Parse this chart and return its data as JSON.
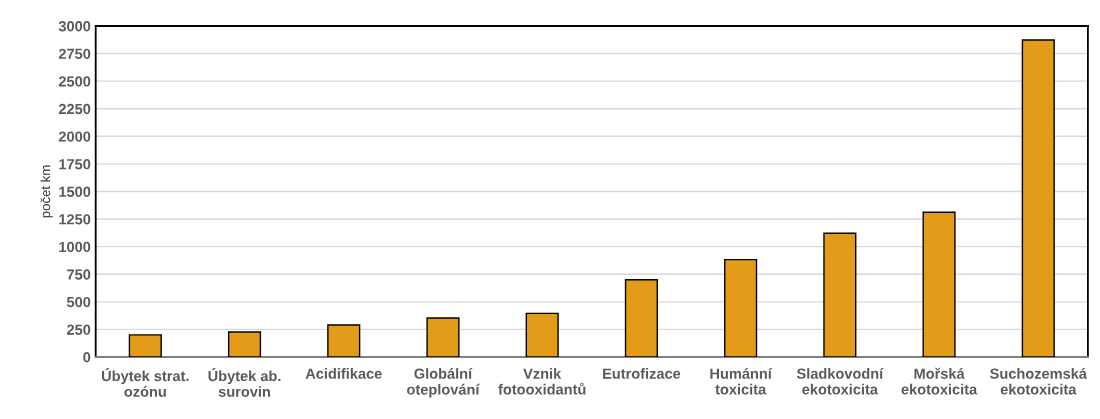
{
  "chart_data": {
    "type": "bar",
    "ylabel": "počet km",
    "categories": [
      "Úbytek strat.\nozónu",
      "Úbytek ab.\nsurovin",
      "Acidifikace",
      "Globální\noteplování",
      "Vznik\nfotooxidantů",
      "Eutrofizace",
      "Humánní\ntoxicita",
      "Sladkovodní\nekotoxicita",
      "Mořská\nekotoxicita",
      "Suchozemská\nekotoxicita"
    ],
    "values": [
      200,
      226,
      290,
      353,
      395,
      700,
      882,
      1121,
      1312,
      2873
    ],
    "color": "#e39c19",
    "ylim": [
      0,
      3000
    ],
    "yticks": [
      0,
      250,
      500,
      750,
      1000,
      1250,
      1500,
      1750,
      2000,
      2250,
      2500,
      2750,
      3000
    ],
    "grid": "y",
    "legend": false
  }
}
